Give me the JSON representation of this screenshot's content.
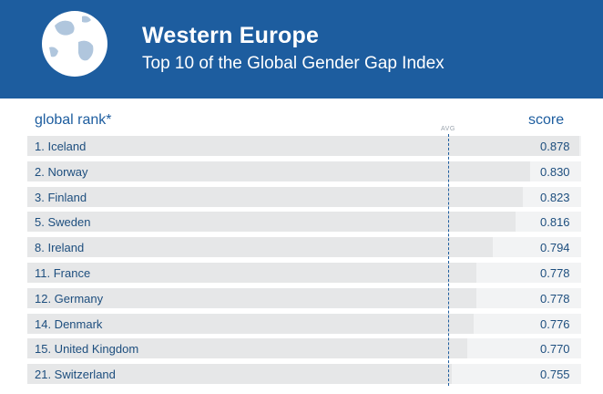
{
  "header": {
    "title": "Western Europe",
    "subtitle": "Top 10 of the Global Gender Gap Index",
    "background_color": "#1d5d9f",
    "icon": "globe-icon"
  },
  "columns": {
    "rank_label": "global rank*",
    "score_label": "score"
  },
  "chart_data": {
    "type": "bar",
    "orientation": "horizontal",
    "title": "Western Europe",
    "subtitle": "Top 10 of the Global Gender Gap Index",
    "categories": [
      "1. Iceland",
      "2. Norway",
      "3. Finland",
      "5. Sweden",
      "8. Ireland",
      "11. France",
      "12. Germany",
      "14. Denmark",
      "15. United Kingdom",
      "21. Switzerland"
    ],
    "values": [
      0.878,
      0.83,
      0.823,
      0.816,
      0.794,
      0.778,
      0.778,
      0.776,
      0.77,
      0.755
    ],
    "value_labels": [
      "0.878",
      "0.830",
      "0.823",
      "0.816",
      "0.794",
      "0.778",
      "0.778",
      "0.776",
      "0.770",
      "0.755"
    ],
    "reference_line": {
      "label": "AVG",
      "value": 0.768
    },
    "xlim": [
      0,
      1
    ],
    "grid": false,
    "colors": {
      "bar": "#e6e7e8",
      "track": "#f2f3f4",
      "text": "#1d4e7e",
      "avg_line": "#1d5d9f"
    }
  }
}
